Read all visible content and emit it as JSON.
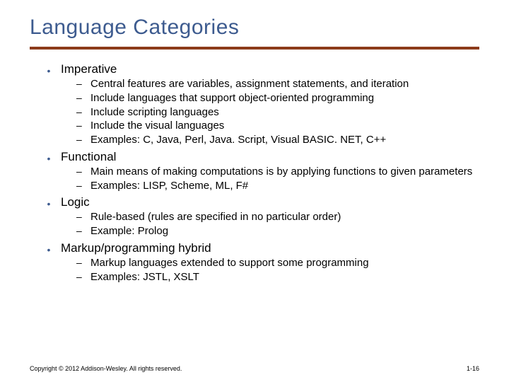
{
  "title": {
    "text": "Language Categories",
    "color": "#3d5b8f",
    "fontsize": 30
  },
  "rule_color": "#8c3b1a",
  "bullet_color": "#3d5b8f",
  "categories": [
    {
      "label": "Imperative",
      "subs": [
        "Central features are variables, assignment statements, and iteration",
        "Include languages that support object-oriented programming",
        "Include scripting languages",
        "Include the visual languages",
        "Examples: C, Java, Perl, Java. Script, Visual BASIC. NET, C++"
      ]
    },
    {
      "label": "Functional",
      "subs": [
        "Main means of making computations is by applying functions to given parameters",
        "Examples: LISP, Scheme, ML, F#"
      ]
    },
    {
      "label": "Logic",
      "subs": [
        "Rule-based (rules are specified in no particular order)",
        "Example: Prolog"
      ]
    },
    {
      "label": "Markup/programming hybrid",
      "subs": [
        "Markup languages extended to support some programming",
        "Examples: JSTL, XSLT"
      ]
    }
  ],
  "footer": {
    "copyright": "Copyright © 2012 Addison-Wesley. All rights reserved.",
    "page": "1-16"
  }
}
